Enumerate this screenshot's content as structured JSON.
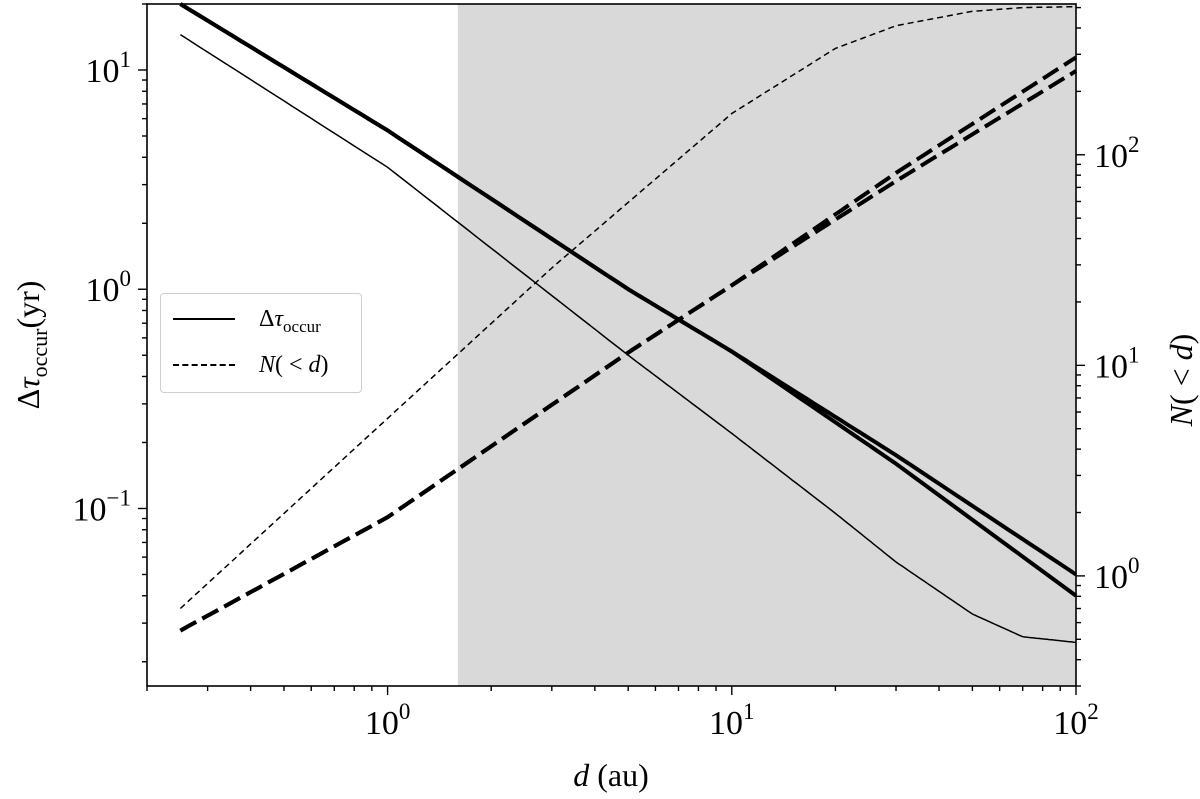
{
  "chart_data": {
    "type": "line",
    "title": "",
    "x_axis": {
      "label": "d (au)",
      "scale": "log",
      "range": [
        0.2,
        100
      ],
      "tick_labels": [
        "10^0",
        "10^1",
        "10^2"
      ]
    },
    "y_left": {
      "label": "Δτ_occur(yr)",
      "scale": "log",
      "range": [
        0.0155,
        20
      ],
      "tick_labels": [
        "10^-1",
        "10^0",
        "10^1"
      ]
    },
    "y_right": {
      "label": "N(<d)",
      "scale": "log",
      "range": [
        0.3,
        520
      ],
      "tick_labels": [
        "10^0",
        "10^1",
        "10^2"
      ]
    },
    "shaded_region": {
      "x": [
        1.6,
        100
      ],
      "color": "#d9d9d9"
    },
    "grid": false,
    "legend": {
      "placement": "center-left",
      "entries": [
        {
          "label": "Δτ_occur",
          "style": "solid"
        },
        {
          "label": "N(<d)",
          "style": "dashed"
        }
      ]
    },
    "series": [
      {
        "axis": "left",
        "style": "solid",
        "weight": "thick",
        "x": [
          0.25,
          1,
          5,
          10,
          30,
          100
        ],
        "y": [
          20,
          5.3,
          1.0,
          0.52,
          0.175,
          0.05
        ]
      },
      {
        "axis": "left",
        "style": "solid",
        "weight": "thick",
        "x": [
          0.25,
          1,
          5,
          10,
          30,
          100
        ],
        "y": [
          20,
          5.3,
          1.0,
          0.52,
          0.16,
          0.04
        ]
      },
      {
        "axis": "left",
        "style": "solid",
        "weight": "thin",
        "x": [
          0.25,
          1,
          5,
          10,
          20,
          30,
          50,
          70,
          100
        ],
        "y": [
          14.5,
          3.6,
          0.5,
          0.22,
          0.095,
          0.057,
          0.033,
          0.026,
          0.0245
        ]
      },
      {
        "axis": "right",
        "style": "dashed",
        "weight": "thin",
        "x": [
          0.25,
          1,
          3,
          10,
          20,
          30,
          50,
          70,
          100
        ],
        "y": [
          0.7,
          5.6,
          29,
          157,
          320,
          410,
          480,
          500,
          505
        ]
      },
      {
        "axis": "right",
        "style": "dashed",
        "weight": "thick",
        "x": [
          0.25,
          1,
          5,
          10,
          30,
          100
        ],
        "y": [
          0.55,
          1.9,
          11.5,
          24,
          82,
          290
        ]
      },
      {
        "axis": "right",
        "style": "dashed",
        "weight": "thick",
        "x": [
          0.25,
          1,
          5,
          10,
          30,
          100
        ],
        "y": [
          0.55,
          1.9,
          11.5,
          24,
          75,
          250
        ]
      }
    ]
  }
}
